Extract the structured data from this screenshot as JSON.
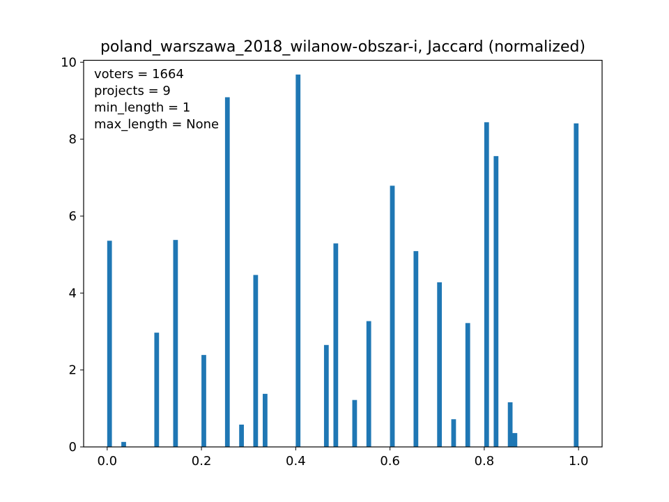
{
  "chart_data": {
    "type": "bar",
    "title": "poland_warszawa_2018_wilanow-obszar-i, Jaccard (normalized)",
    "xlabel": "",
    "ylabel": "",
    "xlim": [
      -0.05,
      1.05
    ],
    "ylim": [
      0,
      10.05
    ],
    "bar_width": 0.01,
    "grid": false,
    "x_ticks": [
      0.0,
      0.2,
      0.4,
      0.6,
      0.8,
      1.0
    ],
    "x_tick_labels": [
      "0.0",
      "0.2",
      "0.4",
      "0.6",
      "0.8",
      "1.0"
    ],
    "y_ticks": [
      0,
      2,
      4,
      6,
      8,
      10
    ],
    "y_tick_labels": [
      "0",
      "2",
      "4",
      "6",
      "8",
      "10"
    ],
    "annotations": [
      "voters = 1664",
      "projects = 9",
      "min_length = 1",
      "max_length = None"
    ],
    "color": "#1f77b4",
    "x": [
      0.005,
      0.035,
      0.105,
      0.145,
      0.205,
      0.255,
      0.285,
      0.315,
      0.335,
      0.405,
      0.465,
      0.485,
      0.525,
      0.555,
      0.605,
      0.655,
      0.705,
      0.735,
      0.765,
      0.805,
      0.825,
      0.855,
      0.865,
      0.995
    ],
    "values": [
      5.36,
      0.13,
      2.97,
      5.38,
      2.39,
      9.09,
      0.58,
      4.47,
      1.38,
      9.68,
      2.65,
      5.29,
      1.22,
      3.27,
      6.79,
      5.09,
      4.28,
      0.72,
      3.22,
      8.44,
      7.56,
      1.16,
      0.36,
      8.41
    ]
  }
}
